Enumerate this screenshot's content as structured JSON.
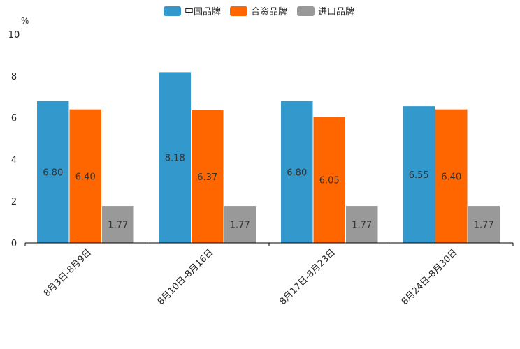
{
  "chart_data": {
    "type": "bar",
    "title": "",
    "xlabel": "",
    "ylabel": "%",
    "ylim": [
      0,
      10
    ],
    "yticks": [
      0,
      2,
      4,
      6,
      8,
      10
    ],
    "grid": false,
    "legend_position": "top-center",
    "categories": [
      "8月3日-8月9日",
      "8月10日-8月16日",
      "8月17日-8月23日",
      "8月24日-8月30日"
    ],
    "series": [
      {
        "name": "中国品牌",
        "color": "#3399cc",
        "values": [
          6.8,
          8.18,
          6.8,
          6.55
        ],
        "labels": [
          "6.80",
          "8.18",
          "6.80",
          "6.55"
        ]
      },
      {
        "name": "合资品牌",
        "color": "#ff6600",
        "values": [
          6.4,
          6.37,
          6.05,
          6.4
        ],
        "labels": [
          "6.40",
          "6.37",
          "6.05",
          "6.40"
        ]
      },
      {
        "name": "进口品牌",
        "color": "#999999",
        "values": [
          1.77,
          1.77,
          1.77,
          1.77
        ],
        "labels": [
          "1.77",
          "1.77",
          "1.77",
          "1.77"
        ]
      }
    ]
  }
}
